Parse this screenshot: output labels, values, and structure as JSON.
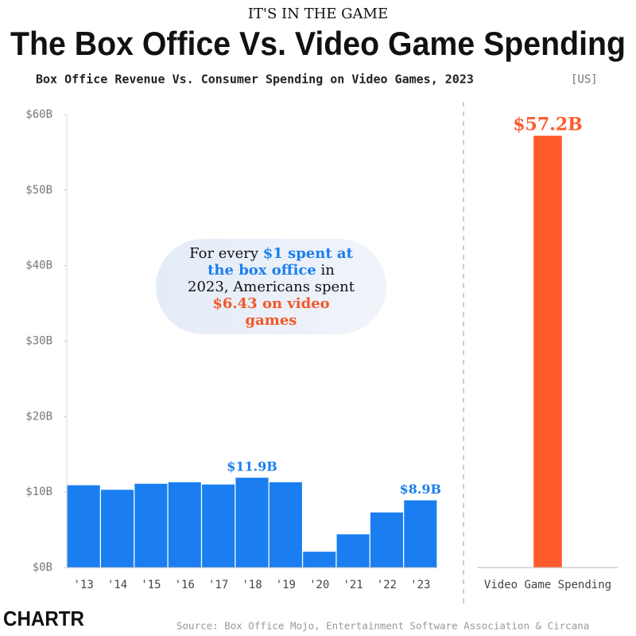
{
  "header": {
    "kicker": "IT'S IN THE GAME",
    "title": "The Box Office Vs. Video Game Spending",
    "subtitle": "Box Office Revenue Vs. Consumer Spending on Video Games, 2023",
    "region": "[US]"
  },
  "chart_data": [
    {
      "type": "bar",
      "categories": [
        "'13",
        "'14",
        "'15",
        "'16",
        "'17",
        "'18",
        "'19",
        "'20",
        "'21",
        "'22",
        "'23"
      ],
      "values": [
        10.9,
        10.3,
        11.1,
        11.3,
        11.0,
        11.9,
        11.3,
        2.1,
        4.4,
        7.3,
        8.9
      ],
      "value_labels": [
        null,
        null,
        null,
        null,
        null,
        "$11.9B",
        null,
        null,
        null,
        null,
        "$8.9B"
      ],
      "color": "#1a7ef0",
      "ylim": [
        0,
        60
      ],
      "yticks": [
        {
          "value": 0,
          "label": "$0B"
        },
        {
          "value": 10,
          "label": "$10B"
        },
        {
          "value": 20,
          "label": "$20B"
        },
        {
          "value": 30,
          "label": "$30B"
        },
        {
          "value": 40,
          "label": "$40B"
        },
        {
          "value": 50,
          "label": "$50B"
        },
        {
          "value": 60,
          "label": "$60B"
        }
      ],
      "annotation": [
        {
          "text": "For every ",
          "color": "#111111"
        },
        {
          "text": "$1 spent at the box office",
          "color": "#1a7ef0"
        },
        {
          "text": " in 2023, Americans spent ",
          "color": "#111111"
        },
        {
          "text": "$6.43 on video games",
          "color": "#f4572a"
        }
      ]
    },
    {
      "type": "bar",
      "categories": [
        "Video Game Spending"
      ],
      "values": [
        57.2
      ],
      "value_labels": [
        "$57.2B"
      ],
      "color": "#ff5a2c",
      "ylim": [
        0,
        60
      ]
    }
  ],
  "footer": {
    "logo": "CHARTR",
    "source": "Source: Box Office Mojo, Entertainment Software Association & Circana"
  }
}
